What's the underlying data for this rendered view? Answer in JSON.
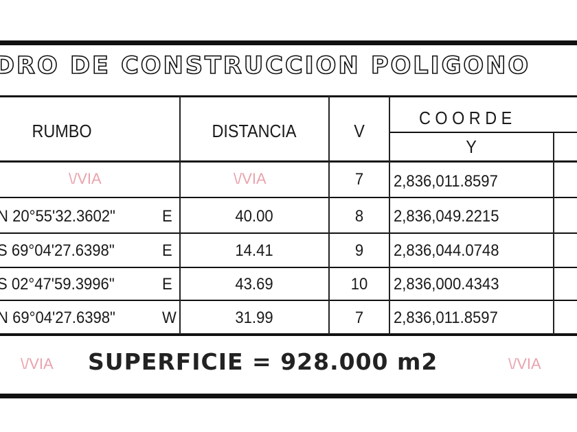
{
  "title": "DRO DE CONSTRUCCION POLIGONO",
  "headers": {
    "rumbo": "RUMBO",
    "distancia": "DISTANCIA",
    "v": "V",
    "coordenadas": "C O O R D E",
    "y": "Y"
  },
  "rows": [
    {
      "rumbo": "",
      "dir": "",
      "distancia": "",
      "v": "7",
      "y": "2,836,011.8597"
    },
    {
      "rumbo": "N  20°55'32.3602\"",
      "dir": "E",
      "distancia": "40.00",
      "v": "8",
      "y": "2,836,049.2215"
    },
    {
      "rumbo": "S  69°04'27.6398\"",
      "dir": "E",
      "distancia": "14.41",
      "v": "9",
      "y": "2,836,044.0748"
    },
    {
      "rumbo": "S  02°47'59.3996\"",
      "dir": "E",
      "distancia": "43.69",
      "v": "10",
      "y": "2,836,000.4343"
    },
    {
      "rumbo": "N  69°04'27.6398\"",
      "dir": "W",
      "distancia": "31.99",
      "v": "7",
      "y": "2,836,011.8597"
    }
  ],
  "superficie": "SUPERFICIE = 928.000 m2",
  "watermark": "VIA"
}
